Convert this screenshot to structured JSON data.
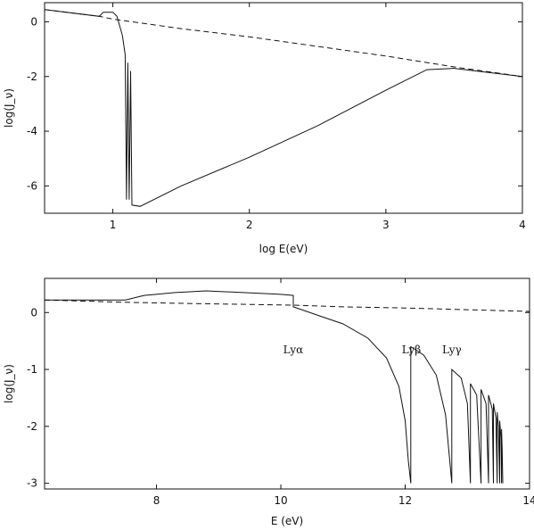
{
  "chart_data": [
    {
      "type": "line",
      "xlabel": "log E(eV)",
      "ylabel": "log(J_ν)",
      "xlim": [
        0.5,
        4.0
      ],
      "ylim": [
        -7.0,
        0.7
      ],
      "xticks": [
        1,
        2,
        3,
        4
      ],
      "yticks": [
        0,
        -2,
        -4,
        -6
      ],
      "xtick_labels": [
        "1",
        "2",
        "3",
        "4"
      ],
      "ytick_labels": [
        "0",
        "-2",
        "-4",
        "-6"
      ],
      "grid": false,
      "series": [
        {
          "style": "dashed",
          "x": [
            0.5,
            0.9,
            1.0,
            1.5,
            2.0,
            2.5,
            3.0,
            3.5,
            4.0
          ],
          "y": [
            0.45,
            0.2,
            0.1,
            -0.25,
            -0.55,
            -0.9,
            -1.25,
            -1.65,
            -2.0
          ]
        },
        {
          "style": "solid",
          "x": [
            0.5,
            0.9,
            0.93,
            1.0,
            1.03,
            1.07,
            1.09,
            1.1,
            1.11,
            1.12,
            1.13,
            1.14,
            1.2,
            1.5,
            2.0,
            2.5,
            3.0,
            3.3,
            3.5,
            4.0
          ],
          "y": [
            0.45,
            0.2,
            0.35,
            0.35,
            0.2,
            -0.5,
            -1.2,
            -6.5,
            -1.5,
            -6.5,
            -1.8,
            -6.7,
            -6.75,
            -6.0,
            -4.95,
            -3.8,
            -2.5,
            -1.75,
            -1.7,
            -2.0
          ]
        }
      ]
    },
    {
      "type": "line",
      "xlabel": "E (eV)",
      "ylabel": "log(J_ν)",
      "xlim": [
        6.2,
        14.0
      ],
      "ylim": [
        -3.1,
        0.6
      ],
      "xticks": [
        8,
        10,
        12,
        14
      ],
      "yticks": [
        0,
        -1,
        -2,
        -3
      ],
      "xtick_labels": [
        "8",
        "10",
        "12",
        "14"
      ],
      "ytick_labels": [
        "0",
        "-1",
        "-2",
        "-3"
      ],
      "grid": false,
      "annotations": [
        {
          "text": "Lyα",
          "x": 10.2,
          "y": -0.72
        },
        {
          "text": "Lyβ",
          "x": 12.1,
          "y": -0.72
        },
        {
          "text": "Lyγ",
          "x": 12.75,
          "y": -0.72
        }
      ],
      "series": [
        {
          "style": "dashed",
          "x": [
            6.2,
            7.5,
            8.5,
            10.2,
            11.0,
            12.0,
            13.0,
            14.0
          ],
          "y": [
            0.22,
            0.18,
            0.16,
            0.13,
            0.1,
            0.08,
            0.05,
            0.02
          ]
        },
        {
          "style": "solid",
          "x": [
            6.2,
            7.5,
            7.8,
            8.3,
            8.8,
            9.4,
            10.0,
            10.2,
            10.2,
            10.6,
            11.0,
            11.4,
            11.7,
            11.9,
            12.0,
            12.05,
            12.09,
            12.09,
            12.3,
            12.5,
            12.65,
            12.75,
            12.75,
            12.9,
            13.0,
            13.05,
            13.05,
            13.15,
            13.22
          ],
          "y": [
            0.22,
            0.22,
            0.3,
            0.35,
            0.38,
            0.35,
            0.32,
            0.3,
            0.1,
            -0.05,
            -0.2,
            -0.45,
            -0.8,
            -1.3,
            -1.9,
            -2.6,
            -3.0,
            -0.6,
            -0.75,
            -1.1,
            -1.8,
            -3.0,
            -1.0,
            -1.15,
            -1.6,
            -3.0,
            -1.25,
            -1.45,
            -3.0
          ]
        },
        {
          "style": "solid",
          "x": [
            13.22,
            13.22,
            13.3,
            13.34,
            13.34,
            13.4,
            13.42,
            13.42,
            13.46,
            13.48,
            13.48,
            13.5,
            13.52,
            13.52,
            13.54,
            13.55,
            13.55,
            13.56,
            13.57
          ],
          "y": [
            -3.0,
            -1.35,
            -1.6,
            -3.0,
            -1.45,
            -1.7,
            -3.0,
            -1.6,
            -1.85,
            -3.0,
            -1.75,
            -2.0,
            -3.0,
            -1.9,
            -2.2,
            -3.0,
            -2.05,
            -2.4,
            -3.0
          ]
        }
      ]
    }
  ]
}
